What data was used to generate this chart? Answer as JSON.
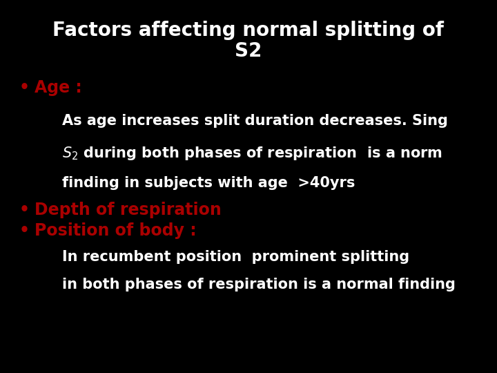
{
  "background_color": "#000000",
  "title_line1": "Factors affecting normal splitting of",
  "title_line2": "S2",
  "title_color": "#ffffff",
  "title_fontsize": 20,
  "bullet1_label": "Age :",
  "bullet1_color": "#aa0000",
  "bullet1_fontsize": 17,
  "line1_text": "As age increases split duration decreases. Sing",
  "line1_color": "#ffffff",
  "line1_fontsize": 15,
  "line2b_text": " during both phases of respiration  is a norm",
  "line2_color": "#ffffff",
  "line2_fontsize": 15,
  "line3_text": "finding in subjects with age  >40yrs",
  "line3_color": "#ffffff",
  "line3_fontsize": 15,
  "bullet2_label": "Depth of respiration",
  "bullet2_color": "#aa0000",
  "bullet2_fontsize": 17,
  "bullet3_label": "Position of body :",
  "bullet3_color": "#aa0000",
  "bullet3_fontsize": 17,
  "line4_text": "In recumbent position  prominent splitting",
  "line4_color": "#ffffff",
  "line4_fontsize": 15,
  "line5_text": "in both phases of respiration is a normal finding",
  "line5_color": "#ffffff",
  "line5_fontsize": 15
}
